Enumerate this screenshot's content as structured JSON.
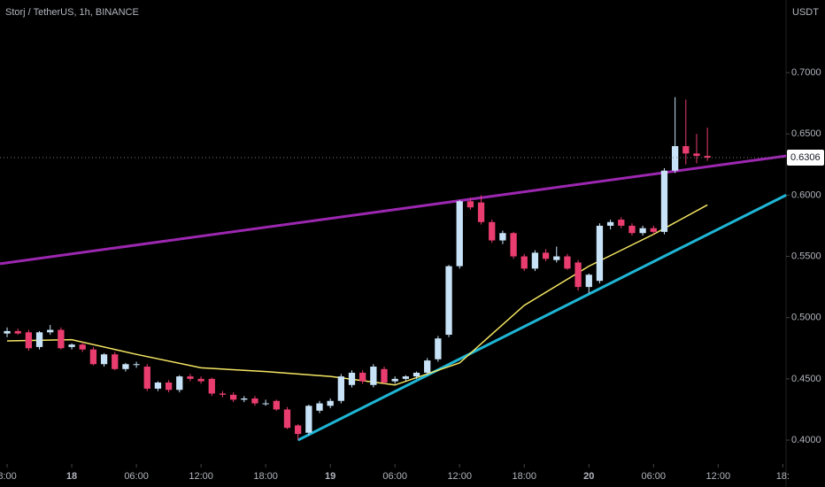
{
  "chart_data": {
    "type": "candlestick",
    "title": "Storj / TetherUS, 1h, BINANCE",
    "currency": "USDT",
    "last_price": 0.6306,
    "up_color": "#c8e3f7",
    "down_color": "#ea3d6f",
    "xlim": [
      -0.66,
      72.3
    ],
    "xticks": [
      {
        "value": 0,
        "label": "8:00"
      },
      {
        "value": 6,
        "label": "18"
      },
      {
        "value": 12,
        "label": "06:00"
      },
      {
        "value": 18,
        "label": "12:00"
      },
      {
        "value": 24,
        "label": "18:00"
      },
      {
        "value": 30,
        "label": "19"
      },
      {
        "value": 36,
        "label": "06:00"
      },
      {
        "value": 42,
        "label": "12:00"
      },
      {
        "value": 48,
        "label": "18:00"
      },
      {
        "value": 54,
        "label": "20"
      },
      {
        "value": 60,
        "label": "06:00"
      },
      {
        "value": 66,
        "label": "12:00"
      },
      {
        "value": 72,
        "label": "18:"
      }
    ],
    "ylim": [
      0.3834,
      0.7593
    ],
    "yticks": [
      {
        "value": 0.4,
        "label": "0.4000"
      },
      {
        "value": 0.45,
        "label": "0.4500"
      },
      {
        "value": 0.5,
        "label": "0.5000"
      },
      {
        "value": 0.55,
        "label": "0.5500"
      },
      {
        "value": 0.6,
        "label": "0.6000"
      },
      {
        "value": 0.65,
        "label": "0.6500"
      },
      {
        "value": 0.7,
        "label": "0.7000"
      }
    ],
    "x": [
      0,
      1,
      2,
      3,
      4,
      5,
      6,
      7,
      8,
      9,
      10,
      11,
      12,
      13,
      14,
      15,
      16,
      17,
      18,
      19,
      20,
      21,
      22,
      23,
      24,
      25,
      26,
      27,
      28,
      29,
      30,
      31,
      32,
      33,
      34,
      35,
      36,
      37,
      38,
      39,
      40,
      41,
      42,
      43,
      44,
      45,
      46,
      47,
      48,
      49,
      50,
      51,
      52,
      53,
      54,
      55,
      56,
      57,
      58,
      59,
      60,
      61,
      62,
      63,
      64,
      65
    ],
    "open": [
      0.487,
      0.489,
      0.488,
      0.476,
      0.488,
      0.49,
      0.476,
      0.478,
      0.474,
      0.462,
      0.47,
      0.458,
      0.462,
      0.46,
      0.442,
      0.447,
      0.441,
      0.452,
      0.45,
      0.45,
      0.438,
      0.437,
      0.433,
      0.434,
      0.43,
      0.432,
      0.425,
      0.412,
      0.406,
      0.424,
      0.428,
      0.432,
      0.445,
      0.455,
      0.445,
      0.458,
      0.448,
      0.45,
      0.452,
      0.455,
      0.466,
      0.486,
      0.542,
      0.595,
      0.594,
      0.578,
      0.563,
      0.569,
      0.55,
      0.54,
      0.553,
      0.547,
      0.55,
      0.545,
      0.525,
      0.53,
      0.575,
      0.58,
      0.575,
      0.569,
      0.573,
      0.57,
      0.62,
      0.64,
      0.634,
      0.632
    ],
    "high": [
      0.492,
      0.491,
      0.49,
      0.489,
      0.494,
      0.492,
      0.479,
      0.48,
      0.476,
      0.471,
      0.472,
      0.463,
      0.464,
      0.462,
      0.448,
      0.449,
      0.453,
      0.454,
      0.452,
      0.451,
      0.44,
      0.439,
      0.436,
      0.436,
      0.433,
      0.433,
      0.427,
      0.413,
      0.429,
      0.432,
      0.434,
      0.454,
      0.457,
      0.457,
      0.462,
      0.46,
      0.452,
      0.453,
      0.456,
      0.467,
      0.485,
      0.543,
      0.596,
      0.598,
      0.6,
      0.58,
      0.571,
      0.57,
      0.552,
      0.555,
      0.556,
      0.558,
      0.552,
      0.547,
      0.536,
      0.577,
      0.58,
      0.582,
      0.577,
      0.575,
      0.575,
      0.622,
      0.68,
      0.678,
      0.65,
      0.655
    ],
    "low": [
      0.484,
      0.486,
      0.473,
      0.474,
      0.486,
      0.474,
      0.474,
      0.472,
      0.461,
      0.46,
      0.457,
      0.456,
      0.459,
      0.44,
      0.44,
      0.439,
      0.439,
      0.448,
      0.446,
      0.436,
      0.435,
      0.431,
      0.431,
      0.428,
      0.428,
      0.424,
      0.409,
      0.4,
      0.404,
      0.422,
      0.426,
      0.43,
      0.443,
      0.446,
      0.443,
      0.446,
      0.446,
      0.448,
      0.45,
      0.453,
      0.464,
      0.484,
      0.54,
      0.588,
      0.576,
      0.561,
      0.56,
      0.548,
      0.538,
      0.538,
      0.546,
      0.545,
      0.539,
      0.522,
      0.52,
      0.528,
      0.572,
      0.573,
      0.567,
      0.567,
      0.568,
      0.568,
      0.618,
      0.625,
      0.626,
      0.628
    ],
    "close": [
      0.489,
      0.487,
      0.475,
      0.488,
      0.49,
      0.475,
      0.478,
      0.474,
      0.462,
      0.47,
      0.458,
      0.462,
      0.462,
      0.442,
      0.447,
      0.441,
      0.452,
      0.45,
      0.448,
      0.438,
      0.437,
      0.433,
      0.434,
      0.43,
      0.43,
      0.425,
      0.41,
      0.405,
      0.428,
      0.43,
      0.432,
      0.452,
      0.455,
      0.448,
      0.46,
      0.447,
      0.45,
      0.452,
      0.455,
      0.465,
      0.483,
      0.542,
      0.595,
      0.59,
      0.578,
      0.563,
      0.569,
      0.55,
      0.54,
      0.553,
      0.548,
      0.55,
      0.54,
      0.525,
      0.535,
      0.575,
      0.578,
      0.575,
      0.569,
      0.573,
      0.57,
      0.62,
      0.64,
      0.634,
      0.632,
      0.6306
    ],
    "lines": [
      {
        "color": "#9c27b0",
        "width": 3,
        "x": [
          -0.66,
          72.3
        ],
        "y": [
          0.544,
          0.632
        ]
      },
      {
        "color": "#1fb6d6",
        "width": 3,
        "x": [
          27,
          72.3
        ],
        "y": [
          0.4,
          0.6
        ]
      },
      {
        "color": "#f5e663",
        "width": 1.5,
        "x": [
          0,
          6,
          12,
          18,
          24,
          30,
          36,
          42,
          48,
          54,
          60,
          65
        ],
        "y": [
          0.481,
          0.482,
          0.47,
          0.459,
          0.456,
          0.452,
          0.445,
          0.463,
          0.51,
          0.542,
          0.568,
          0.592
        ]
      }
    ]
  }
}
